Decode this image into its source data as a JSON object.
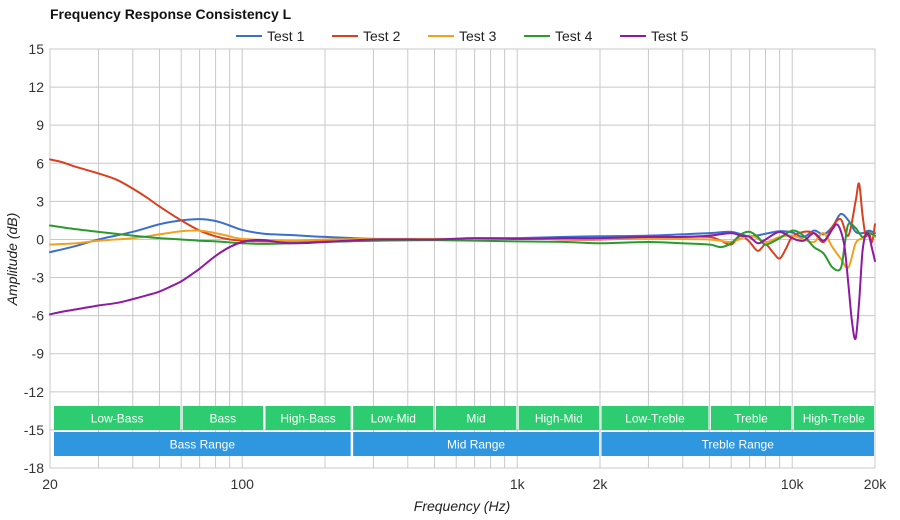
{
  "chart_data": {
    "type": "line",
    "title": "Frequency Response Consistency L",
    "xlabel": "Frequency (Hz)",
    "ylabel": "Amplitude (dB)",
    "x_scale": "log",
    "xlim": [
      20,
      20000
    ],
    "ylim": [
      -18,
      15
    ],
    "grid": true,
    "legend_position": "top",
    "y_ticks": [
      15,
      12,
      9,
      6,
      3,
      0,
      -3,
      -6,
      -9,
      -12,
      -15,
      -18
    ],
    "x_ticks": [
      {
        "value": 20,
        "label": "20"
      },
      {
        "value": 100,
        "label": "100"
      },
      {
        "value": 1000,
        "label": "1k"
      },
      {
        "value": 2000,
        "label": "2k"
      },
      {
        "value": 10000,
        "label": "10k"
      },
      {
        "value": 20000,
        "label": "20k"
      }
    ],
    "series": [
      {
        "name": "Test 1",
        "color": "#3b6fc9",
        "points": [
          [
            20,
            -1.0
          ],
          [
            25,
            -0.5
          ],
          [
            30,
            0.0
          ],
          [
            40,
            0.6
          ],
          [
            50,
            1.2
          ],
          [
            60,
            1.5
          ],
          [
            70,
            1.6
          ],
          [
            80,
            1.45
          ],
          [
            90,
            1.1
          ],
          [
            100,
            0.75
          ],
          [
            120,
            0.45
          ],
          [
            150,
            0.35
          ],
          [
            200,
            0.2
          ],
          [
            300,
            0.05
          ],
          [
            500,
            0.0
          ],
          [
            1000,
            0.1
          ],
          [
            1500,
            0.2
          ],
          [
            2000,
            0.25
          ],
          [
            3000,
            0.3
          ],
          [
            5000,
            0.5
          ],
          [
            6000,
            0.6
          ],
          [
            7000,
            0.25
          ],
          [
            8000,
            0.45
          ],
          [
            9000,
            0.65
          ],
          [
            10000,
            0.55
          ],
          [
            11000,
            0.2
          ],
          [
            12000,
            0.7
          ],
          [
            13000,
            0.4
          ],
          [
            14000,
            1.0
          ],
          [
            15000,
            2.0
          ],
          [
            16000,
            1.5
          ],
          [
            17000,
            0.6
          ],
          [
            18000,
            0.5
          ],
          [
            19000,
            0.7
          ],
          [
            20000,
            0.5
          ]
        ]
      },
      {
        "name": "Test 2",
        "color": "#d9401f",
        "points": [
          [
            20,
            6.3
          ],
          [
            22,
            6.1
          ],
          [
            25,
            5.7
          ],
          [
            30,
            5.2
          ],
          [
            35,
            4.7
          ],
          [
            40,
            4.0
          ],
          [
            45,
            3.3
          ],
          [
            50,
            2.6
          ],
          [
            60,
            1.5
          ],
          [
            70,
            0.7
          ],
          [
            80,
            0.25
          ],
          [
            90,
            0.0
          ],
          [
            100,
            -0.1
          ],
          [
            120,
            -0.15
          ],
          [
            150,
            -0.15
          ],
          [
            200,
            -0.1
          ],
          [
            300,
            0.0
          ],
          [
            500,
            0.0
          ],
          [
            800,
            0.1
          ],
          [
            1000,
            0.1
          ],
          [
            1500,
            0.0
          ],
          [
            2000,
            0.0
          ],
          [
            3000,
            0.1
          ],
          [
            4000,
            0.2
          ],
          [
            5000,
            0.2
          ],
          [
            5500,
            -0.1
          ],
          [
            6000,
            -0.4
          ],
          [
            6500,
            0.3
          ],
          [
            7000,
            -0.2
          ],
          [
            7500,
            -0.9
          ],
          [
            8000,
            -0.4
          ],
          [
            8500,
            -1.0
          ],
          [
            9000,
            -1.5
          ],
          [
            9500,
            -0.7
          ],
          [
            10000,
            0.2
          ],
          [
            11000,
            0.6
          ],
          [
            12000,
            0.5
          ],
          [
            13000,
            -0.2
          ],
          [
            14000,
            1.0
          ],
          [
            15000,
            1.6
          ],
          [
            16000,
            0.3
          ],
          [
            17000,
            3.0
          ],
          [
            17500,
            4.4
          ],
          [
            18000,
            2.0
          ],
          [
            18500,
            0.3
          ],
          [
            19000,
            0.6
          ],
          [
            19500,
            -0.2
          ],
          [
            20000,
            1.2
          ]
        ]
      },
      {
        "name": "Test 3",
        "color": "#f2a11f",
        "points": [
          [
            20,
            -0.4
          ],
          [
            25,
            -0.3
          ],
          [
            30,
            -0.1
          ],
          [
            40,
            0.1
          ],
          [
            50,
            0.4
          ],
          [
            60,
            0.65
          ],
          [
            70,
            0.7
          ],
          [
            80,
            0.5
          ],
          [
            90,
            0.25
          ],
          [
            100,
            0.05
          ],
          [
            150,
            -0.1
          ],
          [
            200,
            0.0
          ],
          [
            300,
            0.05
          ],
          [
            500,
            0.05
          ],
          [
            1000,
            0.05
          ],
          [
            2000,
            0.05
          ],
          [
            3000,
            0.05
          ],
          [
            5000,
            0.0
          ],
          [
            6000,
            -0.2
          ],
          [
            7000,
            0.3
          ],
          [
            8000,
            -0.2
          ],
          [
            9000,
            0.2
          ],
          [
            10000,
            0.3
          ],
          [
            11000,
            0.0
          ],
          [
            12000,
            -0.2
          ],
          [
            13000,
            0.5
          ],
          [
            14000,
            -0.6
          ],
          [
            15000,
            -1.5
          ],
          [
            16000,
            -2.2
          ],
          [
            17000,
            -0.3
          ],
          [
            18000,
            0.1
          ],
          [
            19000,
            0.5
          ],
          [
            20000,
            0.2
          ]
        ]
      },
      {
        "name": "Test 4",
        "color": "#2a9a2f",
        "points": [
          [
            20,
            1.1
          ],
          [
            25,
            0.8
          ],
          [
            30,
            0.6
          ],
          [
            40,
            0.3
          ],
          [
            50,
            0.1
          ],
          [
            60,
            0.0
          ],
          [
            70,
            -0.1
          ],
          [
            80,
            -0.15
          ],
          [
            100,
            -0.3
          ],
          [
            120,
            -0.35
          ],
          [
            150,
            -0.3
          ],
          [
            200,
            -0.2
          ],
          [
            300,
            -0.1
          ],
          [
            500,
            -0.05
          ],
          [
            1000,
            -0.15
          ],
          [
            1500,
            -0.2
          ],
          [
            2000,
            -0.3
          ],
          [
            3000,
            -0.2
          ],
          [
            4000,
            -0.3
          ],
          [
            5000,
            -0.4
          ],
          [
            5500,
            -0.6
          ],
          [
            6000,
            -0.3
          ],
          [
            6500,
            0.4
          ],
          [
            7000,
            0.6
          ],
          [
            7500,
            0.2
          ],
          [
            8000,
            -0.4
          ],
          [
            9000,
            0.1
          ],
          [
            10000,
            0.7
          ],
          [
            11000,
            0.3
          ],
          [
            12000,
            -0.6
          ],
          [
            13000,
            -1.1
          ],
          [
            14000,
            -2.2
          ],
          [
            15000,
            -2.3
          ],
          [
            15500,
            -0.5
          ],
          [
            16000,
            1.2
          ],
          [
            17000,
            0.9
          ],
          [
            18000,
            0.2
          ],
          [
            19000,
            0.5
          ],
          [
            20000,
            0.3
          ]
        ]
      },
      {
        "name": "Test 5",
        "color": "#8e1aa3",
        "points": [
          [
            20,
            -5.9
          ],
          [
            22,
            -5.7
          ],
          [
            25,
            -5.5
          ],
          [
            30,
            -5.2
          ],
          [
            35,
            -5.0
          ],
          [
            40,
            -4.7
          ],
          [
            45,
            -4.4
          ],
          [
            50,
            -4.1
          ],
          [
            55,
            -3.7
          ],
          [
            60,
            -3.3
          ],
          [
            65,
            -2.8
          ],
          [
            70,
            -2.3
          ],
          [
            80,
            -1.3
          ],
          [
            90,
            -0.6
          ],
          [
            100,
            -0.2
          ],
          [
            110,
            -0.05
          ],
          [
            120,
            -0.05
          ],
          [
            150,
            -0.3
          ],
          [
            200,
            -0.2
          ],
          [
            300,
            0.0
          ],
          [
            500,
            0.0
          ],
          [
            700,
            0.1
          ],
          [
            1000,
            0.05
          ],
          [
            1500,
            0.1
          ],
          [
            2000,
            0.1
          ],
          [
            3000,
            0.2
          ],
          [
            4000,
            0.2
          ],
          [
            5000,
            0.3
          ],
          [
            6000,
            0.5
          ],
          [
            6500,
            0.3
          ],
          [
            7000,
            0.2
          ],
          [
            7500,
            -0.3
          ],
          [
            8000,
            0.0
          ],
          [
            9000,
            0.6
          ],
          [
            10000,
            0.1
          ],
          [
            11000,
            -0.1
          ],
          [
            12000,
            0.5
          ],
          [
            13000,
            -0.1
          ],
          [
            14000,
            0.8
          ],
          [
            14500,
            1.2
          ],
          [
            15000,
            0.7
          ],
          [
            15500,
            -0.6
          ],
          [
            16000,
            -3.5
          ],
          [
            16500,
            -6.5
          ],
          [
            17000,
            -7.8
          ],
          [
            17500,
            -5.0
          ],
          [
            18000,
            -1.0
          ],
          [
            18500,
            0.4
          ],
          [
            19000,
            0.3
          ],
          [
            19500,
            -0.7
          ],
          [
            20000,
            -1.7
          ]
        ]
      }
    ],
    "bands": [
      {
        "label": "Low-Bass",
        "from": 20,
        "to": 60,
        "color": "#2ecc71"
      },
      {
        "label": "Bass",
        "from": 60,
        "to": 120,
        "color": "#2ecc71"
      },
      {
        "label": "High-Bass",
        "from": 120,
        "to": 250,
        "color": "#2ecc71"
      },
      {
        "label": "Low-Mid",
        "from": 250,
        "to": 500,
        "color": "#2ecc71"
      },
      {
        "label": "Mid",
        "from": 500,
        "to": 1000,
        "color": "#2ecc71"
      },
      {
        "label": "High-Mid",
        "from": 1000,
        "to": 2000,
        "color": "#2ecc71"
      },
      {
        "label": "Low-Treble",
        "from": 2000,
        "to": 5000,
        "color": "#2ecc71"
      },
      {
        "label": "Treble",
        "from": 5000,
        "to": 10000,
        "color": "#2ecc71"
      },
      {
        "label": "High-Treble",
        "from": 10000,
        "to": 20000,
        "color": "#2ecc71"
      }
    ],
    "ranges": [
      {
        "label": "Bass Range",
        "from": 20,
        "to": 250,
        "color": "#2f97e0"
      },
      {
        "label": "Mid Range",
        "from": 250,
        "to": 2000,
        "color": "#2f97e0"
      },
      {
        "label": "Treble Range",
        "from": 2000,
        "to": 20000,
        "color": "#2f97e0"
      }
    ]
  }
}
